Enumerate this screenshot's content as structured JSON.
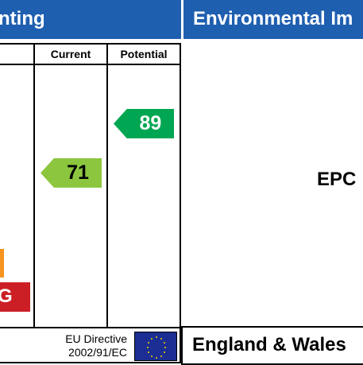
{
  "header": {
    "left_title": "nting",
    "right_title": "Environmental Im"
  },
  "columns": {
    "current": "Current",
    "potential": "Potential"
  },
  "ratings": {
    "current": {
      "value": "71",
      "color": "#8cc63f"
    },
    "potential": {
      "value": "89",
      "color": "#00a651"
    }
  },
  "bands": {
    "f_color": "#f7941d",
    "g_label": "G",
    "g_color": "#cc1f25"
  },
  "footer": {
    "eu_directive_line1": "EU Directive",
    "eu_directive_line2": "2002/91/EC",
    "country": "England & Wales"
  },
  "right_panel": {
    "epc_label": "EPC"
  },
  "colors": {
    "banner": "#1f5fb0",
    "eu_flag": "#1c2e93"
  }
}
